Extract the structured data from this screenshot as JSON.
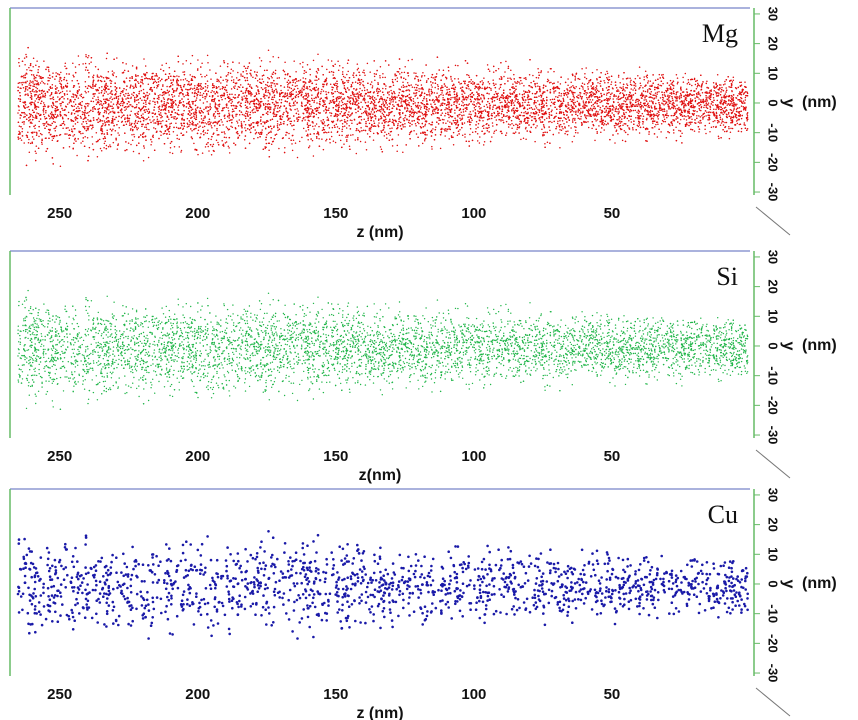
{
  "chart_data": [
    {
      "type": "scatter",
      "title": "Mg",
      "color": "#e01010",
      "xlabel": "z (nm)",
      "ylabel": "y",
      "ylabel_unit": "(nm)",
      "xlim": [
        268,
        0
      ],
      "xticks": [
        250,
        200,
        150,
        100,
        50
      ],
      "ylim": [
        -31,
        32
      ],
      "yticks": [
        30,
        20,
        10,
        0,
        -10,
        -20,
        -30
      ]
    },
    {
      "type": "scatter",
      "title": "Si",
      "color": "#1fb548",
      "xlabel": "z(nm)",
      "ylabel": "y",
      "ylabel_unit": "(nm)",
      "xlim": [
        268,
        0
      ],
      "xticks": [
        250,
        200,
        150,
        100,
        50
      ],
      "ylim": [
        -31,
        32
      ],
      "yticks": [
        30,
        20,
        10,
        0,
        -10,
        -20,
        -30
      ]
    },
    {
      "type": "scatter",
      "title": "Cu",
      "color": "#1a1aa8",
      "xlabel": "z (nm)",
      "ylabel": "y",
      "ylabel_unit": "(nm)",
      "xlim": [
        268,
        0
      ],
      "xticks": [
        250,
        200,
        150,
        100,
        50
      ],
      "ylim": [
        -31,
        32
      ],
      "yticks": [
        30,
        20,
        10,
        0,
        -10,
        -20,
        -30
      ]
    }
  ]
}
